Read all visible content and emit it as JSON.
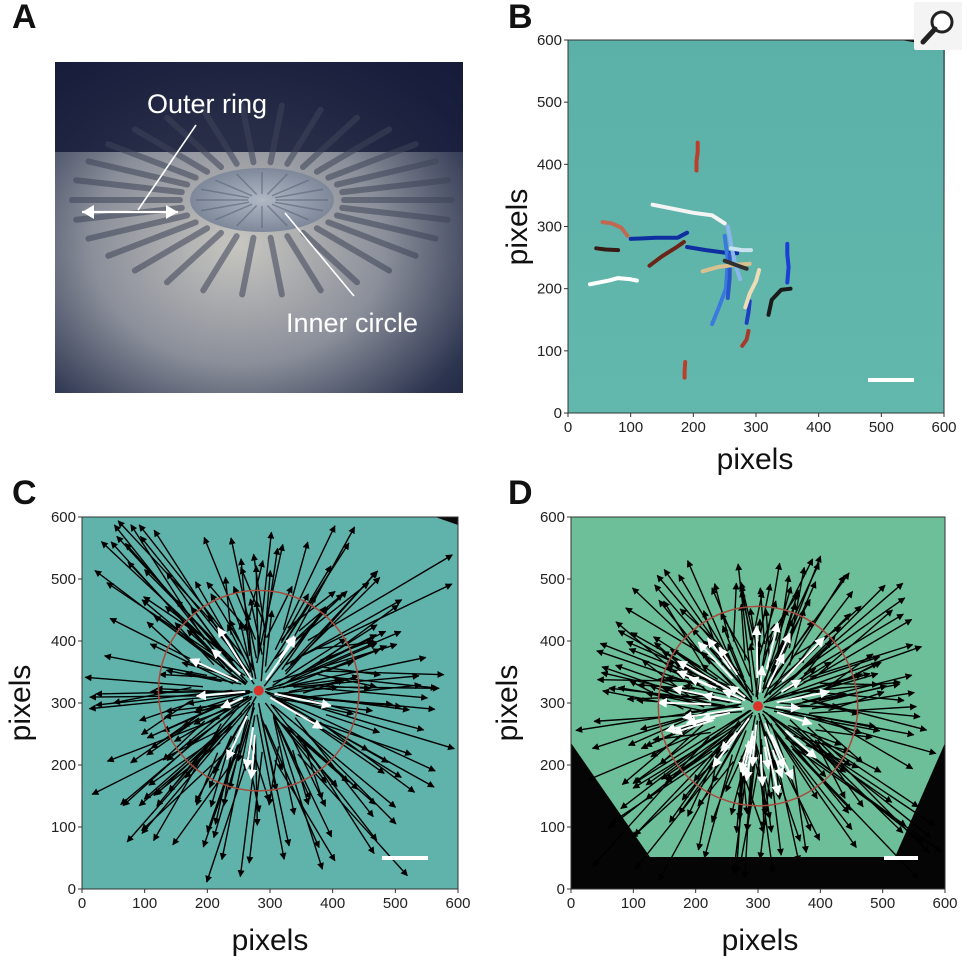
{
  "figure": {
    "panels": [
      {
        "letter": "A",
        "labels": {
          "outer": "Outer ring",
          "inner": "Inner circle"
        }
      },
      {
        "letter": "B"
      },
      {
        "letter": "C"
      },
      {
        "letter": "D"
      }
    ],
    "zoom_icon": "magnifier-icon",
    "colors": {
      "water": "#5fb5ab",
      "water_d": "#6cbf99",
      "circle": "#a84a3c",
      "center_dot": "#d9342a"
    }
  },
  "chart_data": [
    {
      "type": "line",
      "panel": "B",
      "xlabel": "pixels",
      "ylabel": "pixels",
      "xlim": [
        0,
        600
      ],
      "ylim": [
        600,
        0
      ],
      "xticks": [
        0,
        100,
        200,
        300,
        400,
        500,
        600
      ],
      "yticks": [
        0,
        100,
        200,
        300,
        400,
        500,
        600
      ],
      "series": [
        {
          "color": "#ffffff",
          "x": [
            35,
            65,
            80,
            100,
            110
          ],
          "y": [
            207,
            213,
            217,
            215,
            213
          ]
        },
        {
          "color": "#3a1a14",
          "x": [
            45,
            60,
            80
          ],
          "y": [
            265,
            263,
            262
          ]
        },
        {
          "color": "#c06850",
          "x": [
            55,
            70,
            85,
            95
          ],
          "y": [
            307,
            305,
            298,
            285
          ]
        },
        {
          "color": "#6a2418",
          "x": [
            130,
            150,
            175,
            185
          ],
          "y": [
            237,
            252,
            268,
            275
          ]
        },
        {
          "color": "#0f2ea0",
          "x": [
            100,
            140,
            175,
            190
          ],
          "y": [
            280,
            282,
            282,
            290
          ]
        },
        {
          "color": "#0f2ea0",
          "x": [
            190,
            220,
            250,
            270
          ],
          "y": [
            267,
            262,
            258,
            257
          ]
        },
        {
          "color": "#f4f4f4",
          "x": [
            135,
            160,
            200,
            230,
            250
          ],
          "y": [
            335,
            330,
            322,
            318,
            305
          ]
        },
        {
          "color": "#b8402c",
          "x": [
            186,
            186,
            187
          ],
          "y": [
            57,
            67,
            82
          ]
        },
        {
          "color": "#b8402c",
          "x": [
            205,
            205,
            207,
            207
          ],
          "y": [
            390,
            405,
            420,
            435
          ]
        },
        {
          "color": "#3a7ade",
          "x": [
            230,
            240,
            252,
            255,
            250
          ],
          "y": [
            143,
            168,
            200,
            245,
            285
          ]
        },
        {
          "color": "#2a56c8",
          "x": [
            255,
            258,
            258
          ],
          "y": [
            185,
            218,
            255
          ]
        },
        {
          "color": "#8ab6ec",
          "x": [
            255,
            262,
            268,
            275
          ],
          "y": [
            300,
            262,
            235,
            215
          ]
        },
        {
          "color": "#d8c090",
          "x": [
            215,
            240,
            265,
            290
          ],
          "y": [
            228,
            235,
            238,
            240
          ]
        },
        {
          "color": "#303030",
          "x": [
            250,
            268,
            285
          ],
          "y": [
            245,
            238,
            232
          ]
        },
        {
          "color": "#c8e2f0",
          "x": [
            260,
            278,
            292
          ],
          "y": [
            265,
            262,
            262
          ]
        },
        {
          "color": "#a83a2c",
          "x": [
            278,
            285,
            288
          ],
          "y": [
            108,
            118,
            132
          ]
        },
        {
          "color": "#1c40c0",
          "x": [
            285,
            288,
            290
          ],
          "y": [
            145,
            162,
            180
          ]
        },
        {
          "color": "#ecdcb8",
          "x": [
            283,
            290,
            300,
            305
          ],
          "y": [
            170,
            192,
            212,
            230
          ]
        },
        {
          "color": "#1a1a1a",
          "x": [
            320,
            325,
            340,
            355
          ],
          "y": [
            158,
            182,
            198,
            200
          ]
        },
        {
          "color": "#1b3fd6",
          "x": [
            350,
            352,
            350,
            350
          ],
          "y": [
            210,
            235,
            255,
            272
          ]
        }
      ]
    },
    {
      "type": "scatter",
      "panel": "C",
      "xlabel": "pixels",
      "ylabel": "pixels",
      "xlim": [
        0,
        600
      ],
      "ylim": [
        600,
        0
      ],
      "xticks": [
        0,
        100,
        200,
        300,
        400,
        500,
        600
      ],
      "yticks": [
        0,
        100,
        200,
        300,
        400,
        500,
        600
      ],
      "center": [
        282,
        320
      ],
      "circle_radius": 160
    },
    {
      "type": "scatter",
      "panel": "D",
      "xlabel": "pixels",
      "ylabel": "pixels",
      "xlim": [
        0,
        600
      ],
      "ylim": [
        600,
        0
      ],
      "xticks": [
        0,
        100,
        200,
        300,
        400,
        500,
        600
      ],
      "yticks": [
        0,
        100,
        200,
        300,
        400,
        500,
        600
      ],
      "center": [
        300,
        295
      ],
      "circle_radius": 160
    }
  ]
}
